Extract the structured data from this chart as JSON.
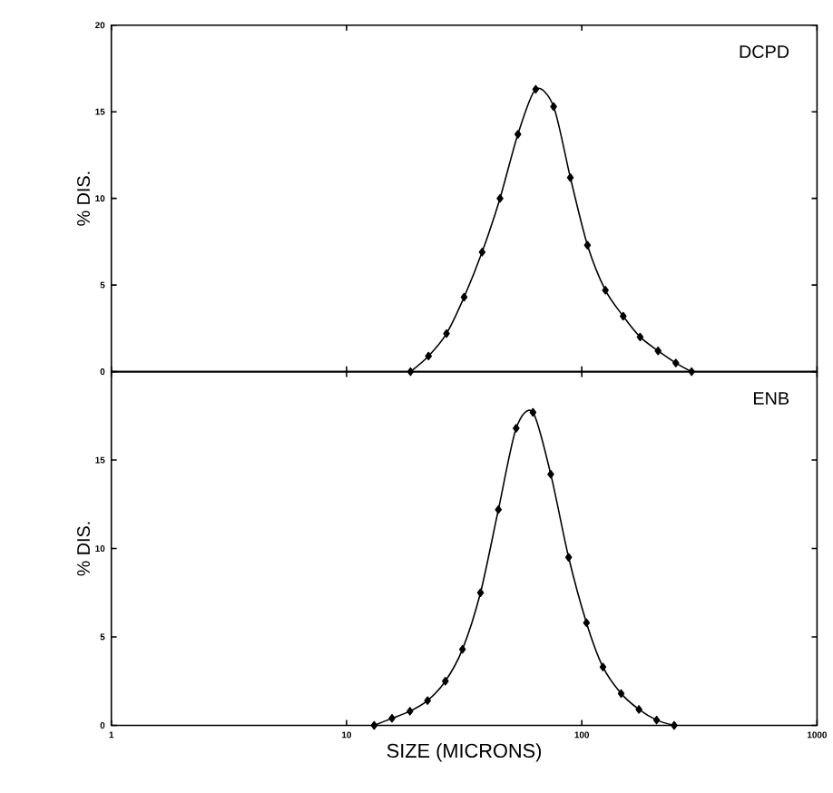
{
  "chart_data": [
    {
      "type": "line",
      "ylabel": "% DIS.",
      "annotations": [
        "DCPD"
      ],
      "log": "x",
      "xlim": [
        1,
        1000
      ],
      "xticks": [
        1,
        10,
        100,
        1000
      ],
      "ylim": [
        0,
        20
      ],
      "yticks": [
        0,
        5,
        10,
        15,
        20
      ],
      "tick_labels": "y",
      "marker": "diamond",
      "line_style": "solid",
      "series": [
        {
          "color": "#000000",
          "x": [
            18.7,
            22.3,
            26.6,
            31.6,
            37.7,
            44.9,
            53.5,
            63.7,
            75.9,
            89.4,
            105.7,
            126,
            150,
            177,
            211,
            251,
            293
          ],
          "values": [
            0,
            0.9,
            2.2,
            4.3,
            6.9,
            10.0,
            13.7,
            16.3,
            15.3,
            11.2,
            7.3,
            4.7,
            3.2,
            2.0,
            1.2,
            0.5,
            0
          ]
        }
      ]
    },
    {
      "type": "line",
      "xlabel": "SIZE (MICRONS)",
      "ylabel": "% DIS.",
      "annotations": [
        "ENB"
      ],
      "log": "x",
      "xlim": [
        1,
        1000
      ],
      "xticks": [
        1,
        10,
        100,
        1000
      ],
      "ylim": [
        0,
        20
      ],
      "yticks": [
        0,
        5,
        10,
        15
      ],
      "marker": "diamond",
      "line_style": "solid",
      "series": [
        {
          "color": "#000000",
          "x": [
            13.1,
            15.6,
            18.6,
            22.1,
            26.3,
            31.1,
            37.1,
            44.2,
            52.6,
            62.0,
            73.8,
            87.9,
            104.7,
            123,
            147,
            175,
            208,
            247
          ],
          "values": [
            0,
            0.4,
            0.8,
            1.4,
            2.5,
            4.3,
            7.5,
            12.2,
            16.8,
            17.7,
            14.2,
            9.5,
            5.8,
            3.3,
            1.8,
            0.9,
            0.3,
            0
          ]
        }
      ]
    }
  ]
}
